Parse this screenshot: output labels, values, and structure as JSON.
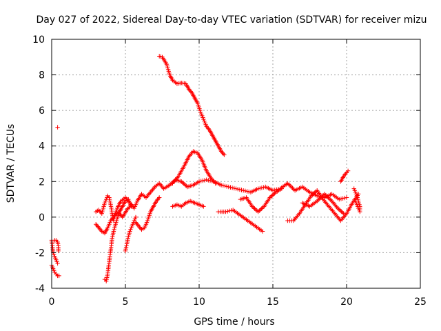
{
  "chart_data": {
    "type": "scatter",
    "title": "Day 027 of 2022, Sidereal Day-to-day VTEC variation (SDTVAR) for receiver mizu",
    "xlabel": "GPS time / hours",
    "ylabel": "SDTVAR / TECUs",
    "xlim": [
      0,
      25
    ],
    "ylim": [
      -4,
      10
    ],
    "x_ticks": [
      0,
      5,
      10,
      15,
      20,
      25
    ],
    "y_ticks": [
      -4,
      -2,
      0,
      2,
      4,
      6,
      8,
      10
    ],
    "x_tick_labels": [
      "0",
      "5",
      "10",
      "15",
      "20",
      "25"
    ],
    "y_tick_labels": [
      "-4",
      "-2",
      "0",
      "2",
      "4",
      "6",
      "8",
      "10"
    ],
    "grid": true,
    "marker": "+",
    "color": "#ff0000",
    "series": [
      {
        "name": "trace-01",
        "x": [
          0.0,
          0.1,
          0.2,
          0.3,
          0.4,
          0.5
        ],
        "y": [
          -2.7,
          -2.9,
          -3.1,
          -3.2,
          -3.3,
          -3.3
        ]
      },
      {
        "name": "trace-02",
        "x": [
          0.0,
          0.05,
          0.1,
          0.2,
          0.3,
          0.4
        ],
        "y": [
          -1.3,
          -1.6,
          -2.0,
          -2.2,
          -2.4,
          -2.6
        ]
      },
      {
        "name": "trace-03",
        "x": [
          0.2,
          0.3,
          0.4,
          0.45,
          0.45
        ],
        "y": [
          -1.3,
          -1.3,
          -1.4,
          -1.6,
          -1.9
        ]
      },
      {
        "name": "trace-04",
        "x": [
          0.4
        ],
        "y": [
          5.05
        ]
      },
      {
        "name": "trace-05",
        "x": [
          7.3,
          7.5,
          7.8,
          8.0,
          8.2,
          8.5,
          8.8,
          9.1,
          9.3,
          9.5,
          9.7,
          9.9,
          10.1,
          10.3,
          10.5,
          10.7,
          10.9,
          11.1,
          11.3,
          11.5,
          11.7
        ],
        "y": [
          9.05,
          9.0,
          8.6,
          8.0,
          7.7,
          7.5,
          7.55,
          7.5,
          7.2,
          7.0,
          6.7,
          6.4,
          5.9,
          5.5,
          5.1,
          4.9,
          4.6,
          4.3,
          4.0,
          3.7,
          3.5
        ]
      },
      {
        "name": "trace-06",
        "x": [
          3.0,
          3.2,
          3.4,
          3.5,
          3.6,
          3.7,
          3.8,
          3.9,
          4.0,
          4.1,
          4.2,
          4.3,
          4.5,
          4.7,
          5.0,
          5.3,
          5.6,
          5.8,
          6.1,
          6.4,
          6.7,
          7.0,
          7.3,
          7.6,
          8.0,
          8.4,
          8.8,
          9.2,
          9.6,
          10.0,
          10.5,
          11.0,
          11.5,
          12.0,
          12.5,
          13.0,
          13.5,
          14.0,
          14.5,
          15.0,
          15.5,
          16.0,
          16.5,
          17.0,
          17.5,
          18.0,
          18.5,
          19.0,
          19.5,
          20.0
        ],
        "y": [
          0.3,
          0.4,
          0.2,
          0.5,
          0.8,
          1.0,
          1.2,
          1.1,
          0.7,
          0.2,
          -0.2,
          0.2,
          0.6,
          0.9,
          1.1,
          0.8,
          0.5,
          0.9,
          1.3,
          1.1,
          1.4,
          1.7,
          1.9,
          1.6,
          1.8,
          2.1,
          2.0,
          1.7,
          1.8,
          2.0,
          2.1,
          2.0,
          1.8,
          1.7,
          1.6,
          1.5,
          1.4,
          1.6,
          1.7,
          1.5,
          1.6,
          1.9,
          1.5,
          1.7,
          1.4,
          1.2,
          1.1,
          1.3,
          1.0,
          1.1
        ]
      },
      {
        "name": "trace-07",
        "x": [
          3.0,
          3.2,
          3.4,
          3.6,
          3.8,
          4.0,
          4.2,
          4.5,
          4.8,
          5.1,
          5.4
        ],
        "y": [
          -0.4,
          -0.6,
          -0.8,
          -0.9,
          -0.6,
          -0.2,
          0.0,
          0.3,
          0.0,
          0.4,
          0.7
        ]
      },
      {
        "name": "trace-08",
        "x": [
          3.6,
          3.7,
          3.8,
          3.9,
          4.0,
          4.1,
          4.2,
          4.4,
          4.6,
          4.8,
          5.0,
          5.2,
          5.4
        ],
        "y": [
          -3.5,
          -3.6,
          -3.2,
          -2.5,
          -1.9,
          -1.2,
          -0.8,
          -0.2,
          0.3,
          0.6,
          0.9,
          1.0,
          0.6
        ]
      },
      {
        "name": "trace-09",
        "x": [
          5.0,
          5.1,
          5.2,
          5.3,
          5.5,
          5.7
        ],
        "y": [
          -1.9,
          -1.5,
          -1.1,
          -0.8,
          -0.4,
          0.0
        ]
      },
      {
        "name": "trace-10",
        "x": [
          5.7,
          5.9,
          6.1,
          6.3,
          6.5,
          6.7,
          6.9,
          7.1,
          7.3
        ],
        "y": [
          -0.3,
          -0.5,
          -0.7,
          -0.6,
          -0.2,
          0.3,
          0.6,
          0.9,
          1.1
        ]
      },
      {
        "name": "trace-11",
        "x": [
          8.2,
          8.6,
          9.0,
          9.3,
          9.6,
          9.9,
          10.2,
          10.5,
          10.8,
          11.1
        ],
        "y": [
          1.9,
          2.3,
          2.9,
          3.4,
          3.7,
          3.6,
          3.2,
          2.6,
          2.2,
          1.9
        ]
      },
      {
        "name": "trace-12",
        "x": [
          8.2,
          8.5,
          8.8,
          9.1,
          9.4,
          9.7,
          10.0,
          10.3
        ],
        "y": [
          0.6,
          0.7,
          0.6,
          0.8,
          0.9,
          0.8,
          0.7,
          0.6
        ]
      },
      {
        "name": "trace-13",
        "x": [
          11.3,
          11.8,
          12.3,
          12.8,
          13.3,
          13.8,
          14.3
        ],
        "y": [
          0.3,
          0.3,
          0.4,
          0.1,
          -0.2,
          -0.5,
          -0.8
        ]
      },
      {
        "name": "trace-14",
        "x": [
          12.8,
          13.2,
          13.6,
          14.0,
          14.4,
          14.8,
          15.2,
          15.6
        ],
        "y": [
          1.0,
          1.1,
          0.6,
          0.3,
          0.6,
          1.1,
          1.4,
          1.6
        ]
      },
      {
        "name": "trace-15",
        "x": [
          16.0,
          16.4,
          16.8,
          17.2,
          17.6,
          18.0,
          18.4,
          18.8,
          19.2,
          19.6,
          20.0,
          20.4,
          20.8
        ],
        "y": [
          -0.2,
          -0.2,
          0.2,
          0.7,
          1.2,
          1.5,
          1.0,
          0.6,
          0.2,
          -0.2,
          0.2,
          0.8,
          1.3
        ]
      },
      {
        "name": "trace-16",
        "x": [
          17.0,
          17.5,
          18.0,
          18.5,
          19.0,
          19.4,
          19.8
        ],
        "y": [
          0.8,
          0.6,
          0.9,
          1.3,
          0.9,
          0.5,
          0.2
        ]
      },
      {
        "name": "trace-17",
        "x": [
          19.6,
          19.8,
          20.0,
          20.1
        ],
        "y": [
          2.0,
          2.3,
          2.5,
          2.6
        ]
      },
      {
        "name": "trace-18",
        "x": [
          20.5,
          20.6,
          20.7,
          20.8,
          20.9,
          20.9,
          20.8,
          20.6
        ],
        "y": [
          1.6,
          1.4,
          1.2,
          0.9,
          0.6,
          0.3,
          0.5,
          0.9
        ]
      }
    ]
  }
}
